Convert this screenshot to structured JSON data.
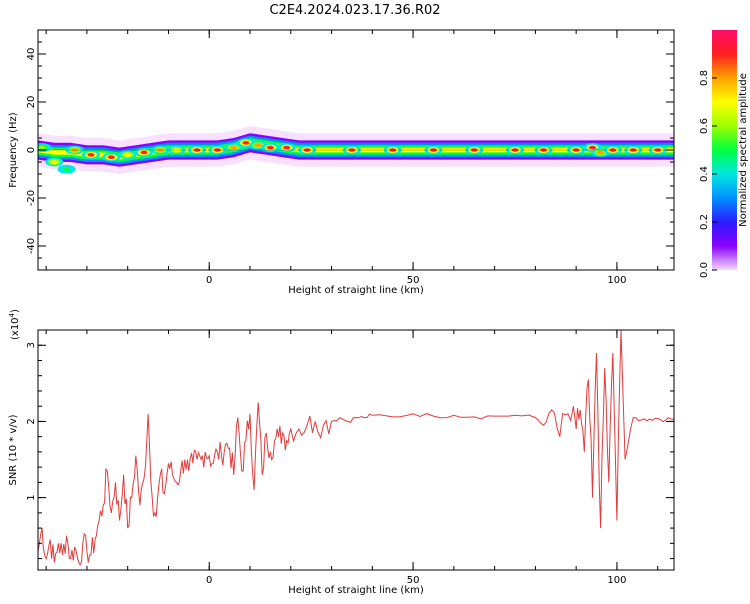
{
  "title": "C2E4.2024.023.17.36.R02",
  "chart_data": [
    {
      "type": "heatmap",
      "xlabel": "Height of straight line (km)",
      "ylabel": "Frequency (Hz)",
      "xlim": [
        -42,
        114
      ],
      "ylim": [
        -50,
        50
      ],
      "xticks": [
        0,
        50,
        100
      ],
      "yticks": [
        -40,
        -20,
        0,
        20,
        40
      ],
      "colorbar": {
        "label": "Normalized spectral amplitude",
        "range": [
          0,
          1
        ],
        "ticks": [
          0.0,
          0.2,
          0.4,
          0.6,
          0.8
        ],
        "colors": [
          "#f6d8ff",
          "#8a00ff",
          "#2a1cff",
          "#0090ff",
          "#00e8e0",
          "#00ff40",
          "#9cff00",
          "#ffff00",
          "#ffa000",
          "#ff2020",
          "#ff0a6a"
        ]
      },
      "ridge": {
        "x": [
          -42,
          -38,
          -34,
          -30,
          -26,
          -22,
          -18,
          -14,
          -10,
          -6,
          -2,
          2,
          6,
          10,
          14,
          18,
          22,
          30,
          40,
          50,
          60,
          70,
          80,
          86,
          90,
          94,
          98,
          102,
          108,
          114
        ],
        "freq": [
          0,
          -1,
          -1,
          -2,
          -2,
          -3,
          -2,
          -1,
          0,
          0,
          0,
          0,
          1,
          3,
          2,
          1,
          0,
          0,
          0,
          0,
          0,
          0,
          0,
          0,
          0,
          0,
          0,
          0,
          0,
          0
        ]
      },
      "blobs": [
        {
          "x": -41,
          "freq": 1,
          "amp": 0.6
        },
        {
          "x": -38,
          "freq": -5,
          "amp": 0.7
        },
        {
          "x": -35,
          "freq": -8,
          "amp": 0.5
        },
        {
          "x": -33,
          "freq": 0,
          "amp": 0.8
        },
        {
          "x": -29,
          "freq": -2,
          "amp": 0.9
        },
        {
          "x": -24,
          "freq": -3,
          "amp": 0.9
        },
        {
          "x": -20,
          "freq": -2,
          "amp": 0.7
        },
        {
          "x": -16,
          "freq": -1,
          "amp": 0.9
        },
        {
          "x": -12,
          "freq": 0,
          "amp": 0.8
        },
        {
          "x": -8,
          "freq": 0,
          "amp": 0.7
        },
        {
          "x": -3,
          "freq": 0,
          "amp": 0.9
        },
        {
          "x": 2,
          "freq": 0,
          "amp": 0.9
        },
        {
          "x": 6,
          "freq": 1,
          "amp": 0.8
        },
        {
          "x": 9,
          "freq": 3,
          "amp": 0.9
        },
        {
          "x": 12,
          "freq": 2,
          "amp": 0.8
        },
        {
          "x": 15,
          "freq": 1,
          "amp": 0.9
        },
        {
          "x": 19,
          "freq": 1,
          "amp": 0.9
        },
        {
          "x": 24,
          "freq": 0,
          "amp": 0.9
        },
        {
          "x": 35,
          "freq": 0,
          "amp": 0.85
        },
        {
          "x": 45,
          "freq": 0,
          "amp": 0.85
        },
        {
          "x": 55,
          "freq": 0,
          "amp": 0.9
        },
        {
          "x": 65,
          "freq": 0,
          "amp": 0.85
        },
        {
          "x": 75,
          "freq": 0,
          "amp": 0.85
        },
        {
          "x": 82,
          "freq": 0,
          "amp": 0.9
        },
        {
          "x": 90,
          "freq": 0,
          "amp": 0.9
        },
        {
          "x": 94,
          "freq": 1,
          "amp": 0.9
        },
        {
          "x": 96,
          "freq": -1,
          "amp": 0.8
        },
        {
          "x": 99,
          "freq": 0,
          "amp": 0.9
        },
        {
          "x": 104,
          "freq": 0,
          "amp": 0.85
        },
        {
          "x": 110,
          "freq": 0,
          "amp": 0.85
        }
      ]
    },
    {
      "type": "line",
      "xlabel": "Height of straight line (km)",
      "ylabel": "SNR (10 * v/v)",
      "yscale_label": "(x10",
      "yscale_exp": "4",
      "yscale_close": ")",
      "xlim": [
        -42,
        114
      ],
      "ylim": [
        0.05,
        3.2
      ],
      "xticks": [
        0,
        50,
        100
      ],
      "yticks": [
        1,
        2,
        3
      ],
      "line_color": "#e03c3c",
      "series": [
        {
          "x": [
            -42,
            -41,
            -40,
            -39,
            -38,
            -37,
            -36,
            -35,
            -34,
            -33,
            -32,
            -31,
            -30,
            -29,
            -28,
            -27,
            -26,
            -25,
            -24,
            -23,
            -22,
            -21,
            -20,
            -19,
            -18,
            -17,
            -16,
            -15,
            -14,
            -13,
            -12,
            -11,
            -10,
            -9,
            -8,
            -7,
            -6,
            -5,
            -4,
            -3,
            -2,
            -1,
            0,
            1,
            2,
            3,
            4,
            5,
            6,
            7,
            8,
            9,
            10,
            11,
            12,
            13,
            14,
            15,
            16,
            17,
            18,
            19,
            20,
            22,
            24,
            26,
            28,
            30,
            32,
            34,
            36,
            38,
            40,
            45,
            50,
            55,
            60,
            65,
            70,
            75,
            80,
            82,
            84,
            86,
            88,
            90,
            91,
            92,
            93,
            94,
            95,
            96,
            97,
            98,
            99,
            100,
            101,
            102,
            104,
            106,
            108,
            110,
            112,
            114
          ],
          "y": [
            0.3,
            0.6,
            0.2,
            0.45,
            0.15,
            0.4,
            0.25,
            0.5,
            0.2,
            0.35,
            0.15,
            0.4,
            0.3,
            0.25,
            0.45,
            0.7,
            0.9,
            1.35,
            0.8,
            1.2,
            0.7,
            1.3,
            0.6,
            1.0,
            1.55,
            0.9,
            1.25,
            2.1,
            1.0,
            0.75,
            1.3,
            1.05,
            1.45,
            1.3,
            1.2,
            1.35,
            1.5,
            1.35,
            1.45,
            1.5,
            1.5,
            1.6,
            1.55,
            1.45,
            1.6,
            1.55,
            1.7,
            1.65,
            1.3,
            2.05,
            1.35,
            1.75,
            2.1,
            1.1,
            2.25,
            1.3,
            1.85,
            1.6,
            1.75,
            1.8,
            1.85,
            1.75,
            1.9,
            1.9,
            1.95,
            2.0,
            1.95,
            2.0,
            2.05,
            2.0,
            2.05,
            2.05,
            2.08,
            2.06,
            2.1,
            2.07,
            2.08,
            2.06,
            2.07,
            2.08,
            2.05,
            1.95,
            2.15,
            1.8,
            2.1,
            1.9,
            2.15,
            1.6,
            2.55,
            1.0,
            2.9,
            0.6,
            2.7,
            1.2,
            2.9,
            0.7,
            3.2,
            1.5,
            2.05,
            2.02,
            2.03,
            2.04,
            2.02,
            2.03
          ]
        }
      ]
    }
  ]
}
